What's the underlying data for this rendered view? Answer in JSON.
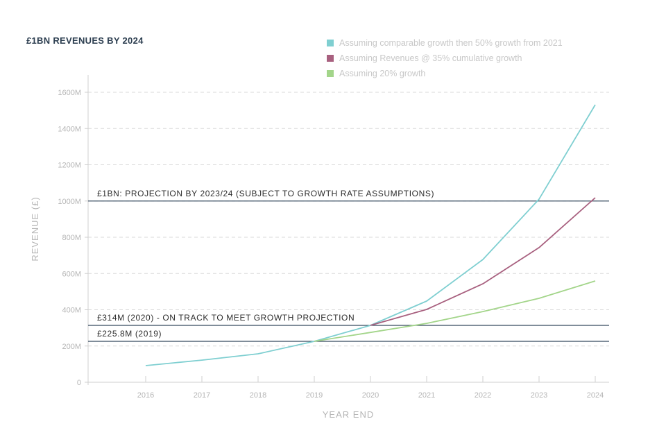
{
  "chart_data": {
    "type": "line",
    "title": "£1BN REVENUES BY 2024",
    "xlabel": "YEAR END",
    "ylabel": "REVENUE (£)",
    "x": [
      "2016",
      "2017",
      "2018",
      "2019",
      "2020",
      "2021",
      "2022",
      "2023",
      "2024"
    ],
    "ylim": [
      0,
      1600
    ],
    "yticks": [
      0,
      200,
      400,
      600,
      800,
      1000,
      1200,
      1400,
      1600
    ],
    "ytick_labels": [
      "0",
      "200M",
      "400M",
      "600M",
      "800M",
      "1000M",
      "1200M",
      "1400M",
      "1600M"
    ],
    "grid": "horizontal-dashed",
    "legend_position": "top-right",
    "series": [
      {
        "name": "Assuming comparable growth then 50% growth from 2021",
        "color": "#7fcfd1",
        "x": [
          "2016",
          "2017",
          "2018",
          "2019",
          "2020",
          "2021",
          "2022",
          "2023",
          "2024"
        ],
        "values": [
          92,
          122,
          157,
          226,
          314,
          448,
          677,
          1010,
          1531
        ]
      },
      {
        "name": "Assuming Revenues @ 35% cumulative growth",
        "color": "#a8607f",
        "x": [
          "2020",
          "2021",
          "2022",
          "2023",
          "2024"
        ],
        "values": [
          314,
          402,
          543,
          743,
          1018
        ]
      },
      {
        "name": "Assuming 20% growth",
        "color": "#a3d58a",
        "x": [
          "2019",
          "2020",
          "2021",
          "2022",
          "2023",
          "2024"
        ],
        "values": [
          226,
          275,
          325,
          390,
          463,
          559
        ]
      }
    ],
    "reference_lines": [
      {
        "value": 1000,
        "label": "£1BN: PROJECTION BY 2023/24 (SUBJECT TO GROWTH RATE ASSUMPTIONS)",
        "color": "#34495e"
      },
      {
        "value": 314,
        "label": "£314M (2020) - ON TRACK TO MEET GROWTH PROJECTION",
        "color": "#34495e"
      },
      {
        "value": 225.8,
        "label": "£225.8M (2019)",
        "color": "#34495e"
      }
    ]
  }
}
